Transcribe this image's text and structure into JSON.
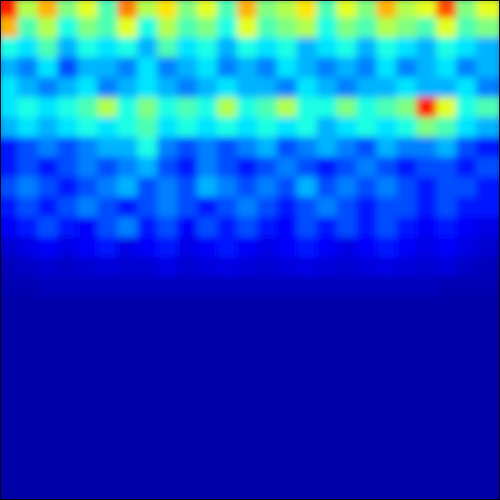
{
  "chart_data": {
    "type": "heatmap",
    "tick_labels": false,
    "color_range": [
      0,
      1
    ],
    "cells": [
      [
        0.85,
        0.55,
        0.7,
        0.5,
        0.6,
        0.45,
        0.75,
        0.55,
        0.65,
        0.5,
        0.6,
        0.45,
        0.7,
        0.5,
        0.55,
        0.65,
        0.45,
        0.6,
        0.5,
        0.7,
        0.55,
        0.6,
        0.8,
        0.5,
        0.6
      ],
      [
        0.7,
        0.45,
        0.55,
        0.4,
        0.5,
        0.45,
        0.6,
        0.4,
        0.55,
        0.45,
        0.5,
        0.4,
        0.6,
        0.45,
        0.5,
        0.55,
        0.4,
        0.5,
        0.45,
        0.55,
        0.5,
        0.45,
        0.6,
        0.45,
        0.5
      ],
      [
        0.4,
        0.35,
        0.45,
        0.3,
        0.4,
        0.35,
        0.4,
        0.3,
        0.45,
        0.35,
        0.4,
        0.3,
        0.4,
        0.35,
        0.4,
        0.3,
        0.35,
        0.4,
        0.3,
        0.4,
        0.35,
        0.3,
        0.4,
        0.35,
        0.3
      ],
      [
        0.3,
        0.25,
        0.35,
        0.2,
        0.3,
        0.3,
        0.25,
        0.35,
        0.25,
        0.3,
        0.35,
        0.25,
        0.3,
        0.25,
        0.35,
        0.3,
        0.25,
        0.3,
        0.25,
        0.35,
        0.25,
        0.3,
        0.35,
        0.25,
        0.3
      ],
      [
        0.35,
        0.3,
        0.25,
        0.3,
        0.35,
        0.25,
        0.3,
        0.35,
        0.3,
        0.25,
        0.3,
        0.35,
        0.3,
        0.3,
        0.25,
        0.35,
        0.3,
        0.25,
        0.3,
        0.3,
        0.35,
        0.3,
        0.3,
        0.35,
        0.25
      ],
      [
        0.35,
        0.4,
        0.35,
        0.4,
        0.45,
        0.55,
        0.4,
        0.5,
        0.4,
        0.45,
        0.4,
        0.55,
        0.4,
        0.45,
        0.55,
        0.4,
        0.4,
        0.5,
        0.4,
        0.45,
        0.5,
        0.85,
        0.6,
        0.4,
        0.45
      ],
      [
        0.3,
        0.35,
        0.3,
        0.35,
        0.4,
        0.35,
        0.4,
        0.45,
        0.35,
        0.4,
        0.35,
        0.4,
        0.35,
        0.4,
        0.35,
        0.4,
        0.3,
        0.35,
        0.4,
        0.35,
        0.4,
        0.5,
        0.45,
        0.35,
        0.3
      ],
      [
        0.15,
        0.2,
        0.25,
        0.2,
        0.25,
        0.3,
        0.3,
        0.4,
        0.25,
        0.2,
        0.25,
        0.2,
        0.25,
        0.3,
        0.2,
        0.25,
        0.3,
        0.25,
        0.2,
        0.3,
        0.25,
        0.25,
        0.3,
        0.2,
        0.15
      ],
      [
        0.15,
        0.2,
        0.15,
        0.2,
        0.25,
        0.2,
        0.25,
        0.3,
        0.2,
        0.15,
        0.25,
        0.2,
        0.15,
        0.2,
        0.25,
        0.2,
        0.15,
        0.2,
        0.25,
        0.2,
        0.15,
        0.2,
        0.2,
        0.15,
        0.2
      ],
      [
        0.2,
        0.25,
        0.2,
        0.15,
        0.2,
        0.25,
        0.3,
        0.2,
        0.25,
        0.2,
        0.3,
        0.25,
        0.2,
        0.25,
        0.2,
        0.3,
        0.2,
        0.25,
        0.2,
        0.25,
        0.2,
        0.15,
        0.2,
        0.2,
        0.15
      ],
      [
        0.15,
        0.2,
        0.15,
        0.2,
        0.25,
        0.2,
        0.15,
        0.2,
        0.25,
        0.2,
        0.15,
        0.2,
        0.25,
        0.2,
        0.15,
        0.2,
        0.25,
        0.2,
        0.15,
        0.2,
        0.2,
        0.15,
        0.2,
        0.15,
        0.15
      ],
      [
        0.12,
        0.15,
        0.2,
        0.15,
        0.12,
        0.2,
        0.25,
        0.15,
        0.2,
        0.12,
        0.2,
        0.15,
        0.2,
        0.15,
        0.12,
        0.2,
        0.15,
        0.2,
        0.15,
        0.2,
        0.15,
        0.12,
        0.15,
        0.12,
        0.1
      ],
      [
        0.08,
        0.1,
        0.12,
        0.1,
        0.12,
        0.15,
        0.1,
        0.12,
        0.15,
        0.1,
        0.12,
        0.15,
        0.12,
        0.1,
        0.12,
        0.15,
        0.12,
        0.1,
        0.12,
        0.15,
        0.12,
        0.1,
        0.12,
        0.1,
        0.08
      ],
      [
        0.06,
        0.07,
        0.08,
        0.07,
        0.08,
        0.09,
        0.08,
        0.08,
        0.1,
        0.08,
        0.09,
        0.1,
        0.09,
        0.08,
        0.09,
        0.1,
        0.09,
        0.08,
        0.09,
        0.1,
        0.09,
        0.08,
        0.09,
        0.07,
        0.06
      ],
      [
        0.05,
        0.05,
        0.06,
        0.06,
        0.06,
        0.06,
        0.06,
        0.06,
        0.06,
        0.06,
        0.06,
        0.06,
        0.06,
        0.06,
        0.06,
        0.06,
        0.06,
        0.06,
        0.06,
        0.06,
        0.06,
        0.06,
        0.05,
        0.05,
        0.05
      ],
      [
        0.04,
        0.04,
        0.04,
        0.04,
        0.04,
        0.04,
        0.04,
        0.04,
        0.04,
        0.04,
        0.04,
        0.04,
        0.04,
        0.04,
        0.04,
        0.04,
        0.04,
        0.04,
        0.04,
        0.04,
        0.04,
        0.04,
        0.04,
        0.04,
        0.04
      ],
      [
        0.04,
        0.04,
        0.04,
        0.04,
        0.04,
        0.04,
        0.04,
        0.04,
        0.04,
        0.04,
        0.04,
        0.04,
        0.04,
        0.04,
        0.04,
        0.04,
        0.04,
        0.04,
        0.04,
        0.04,
        0.04,
        0.04,
        0.04,
        0.04,
        0.04
      ],
      [
        0.04,
        0.04,
        0.04,
        0.04,
        0.04,
        0.04,
        0.04,
        0.04,
        0.04,
        0.04,
        0.04,
        0.04,
        0.04,
        0.04,
        0.04,
        0.04,
        0.04,
        0.04,
        0.04,
        0.04,
        0.04,
        0.04,
        0.04,
        0.04,
        0.04
      ],
      [
        0.04,
        0.04,
        0.04,
        0.04,
        0.04,
        0.04,
        0.04,
        0.04,
        0.04,
        0.04,
        0.04,
        0.04,
        0.04,
        0.04,
        0.04,
        0.04,
        0.04,
        0.04,
        0.04,
        0.04,
        0.04,
        0.04,
        0.04,
        0.04,
        0.04
      ],
      [
        0.04,
        0.04,
        0.04,
        0.04,
        0.04,
        0.04,
        0.04,
        0.04,
        0.04,
        0.04,
        0.04,
        0.04,
        0.04,
        0.04,
        0.04,
        0.04,
        0.04,
        0.04,
        0.04,
        0.04,
        0.04,
        0.04,
        0.04,
        0.04,
        0.04
      ],
      [
        0.04,
        0.04,
        0.04,
        0.04,
        0.04,
        0.04,
        0.04,
        0.04,
        0.04,
        0.04,
        0.04,
        0.04,
        0.04,
        0.04,
        0.04,
        0.04,
        0.04,
        0.04,
        0.04,
        0.04,
        0.04,
        0.04,
        0.04,
        0.04,
        0.04
      ],
      [
        0.04,
        0.04,
        0.04,
        0.04,
        0.04,
        0.04,
        0.04,
        0.04,
        0.04,
        0.04,
        0.04,
        0.04,
        0.04,
        0.04,
        0.04,
        0.04,
        0.04,
        0.04,
        0.04,
        0.04,
        0.04,
        0.04,
        0.04,
        0.04,
        0.04
      ],
      [
        0.04,
        0.04,
        0.04,
        0.04,
        0.04,
        0.04,
        0.04,
        0.04,
        0.04,
        0.04,
        0.04,
        0.04,
        0.04,
        0.04,
        0.04,
        0.04,
        0.04,
        0.04,
        0.04,
        0.04,
        0.04,
        0.04,
        0.04,
        0.04,
        0.04
      ],
      [
        0.04,
        0.04,
        0.04,
        0.04,
        0.04,
        0.04,
        0.04,
        0.04,
        0.04,
        0.04,
        0.04,
        0.04,
        0.04,
        0.04,
        0.04,
        0.04,
        0.04,
        0.04,
        0.04,
        0.04,
        0.04,
        0.04,
        0.04,
        0.04,
        0.04
      ],
      [
        0.04,
        0.04,
        0.04,
        0.04,
        0.04,
        0.04,
        0.04,
        0.04,
        0.04,
        0.04,
        0.04,
        0.04,
        0.04,
        0.04,
        0.04,
        0.04,
        0.04,
        0.04,
        0.04,
        0.04,
        0.04,
        0.04,
        0.04,
        0.04,
        0.04
      ]
    ]
  }
}
